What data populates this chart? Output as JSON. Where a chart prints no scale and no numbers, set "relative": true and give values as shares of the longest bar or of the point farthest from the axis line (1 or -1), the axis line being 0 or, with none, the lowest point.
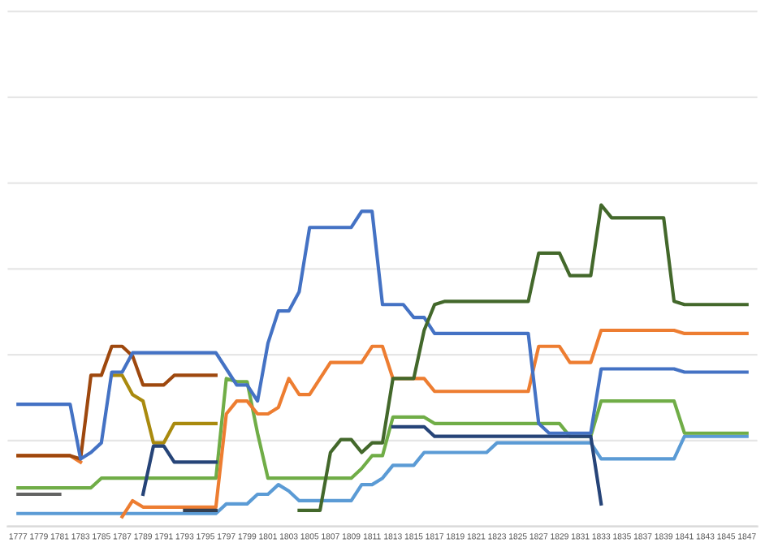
{
  "chart_data": {
    "type": "line",
    "relative": true,
    "grid": "y",
    "tick_labels": "x",
    "legend": false,
    "xlim": [
      1776,
      1848
    ],
    "xticks": [
      1777,
      1779,
      1781,
      1783,
      1785,
      1787,
      1789,
      1791,
      1793,
      1795,
      1797,
      1799,
      1801,
      1803,
      1805,
      1807,
      1809,
      1811,
      1813,
      1815,
      1817,
      1819,
      1821,
      1823,
      1825,
      1827,
      1829,
      1831,
      1833,
      1835,
      1837,
      1839,
      1841,
      1843,
      1845,
      1847
    ],
    "x": [
      1777,
      1778,
      1779,
      1780,
      1781,
      1782,
      1783,
      1784,
      1785,
      1786,
      1787,
      1788,
      1789,
      1790,
      1791,
      1792,
      1793,
      1794,
      1795,
      1796,
      1797,
      1798,
      1799,
      1800,
      1801,
      1802,
      1803,
      1804,
      1805,
      1806,
      1807,
      1808,
      1809,
      1810,
      1811,
      1812,
      1813,
      1814,
      1815,
      1816,
      1817,
      1818,
      1819,
      1820,
      1821,
      1822,
      1823,
      1824,
      1825,
      1826,
      1827,
      1828,
      1829,
      1830,
      1831,
      1832,
      1833,
      1834,
      1835,
      1836,
      1837,
      1838,
      1839,
      1840,
      1841,
      1842,
      1843,
      1844,
      1845,
      1846,
      1847
    ],
    "series": [
      {
        "color": "#5b9bd5",
        "values": [
          0.04,
          0.04,
          0.04,
          0.04,
          0.04,
          0.04,
          0.04,
          0.04,
          0.04,
          0.04,
          0.04,
          0.04,
          0.04,
          0.04,
          0.04,
          0.04,
          0.04,
          0.04,
          0.04,
          0.04,
          0.07,
          0.07,
          0.07,
          0.1,
          0.1,
          0.13,
          0.11,
          0.08,
          0.08,
          0.08,
          0.08,
          0.08,
          0.08,
          0.13,
          0.13,
          0.15,
          0.19,
          0.19,
          0.19,
          0.23,
          0.23,
          0.23,
          0.23,
          0.23,
          0.23,
          0.23,
          0.26,
          0.26,
          0.26,
          0.26,
          0.26,
          0.26,
          0.26,
          0.26,
          0.26,
          0.26,
          0.21,
          0.21,
          0.21,
          0.21,
          0.21,
          0.21,
          0.21,
          0.21,
          0.28,
          0.28,
          0.28,
          0.28,
          0.28,
          0.28,
          0.28
        ]
      },
      {
        "color": "#70ad47",
        "values": [
          0.12,
          0.12,
          0.12,
          0.12,
          0.12,
          0.12,
          0.12,
          0.12,
          0.15,
          0.15,
          0.15,
          0.15,
          0.15,
          0.15,
          0.15,
          0.15,
          0.15,
          0.15,
          0.15,
          0.15,
          0.46,
          0.45,
          0.45,
          0.29,
          0.15,
          0.15,
          0.15,
          0.15,
          0.15,
          0.15,
          0.15,
          0.15,
          0.15,
          0.18,
          0.22,
          0.22,
          0.34,
          0.34,
          0.34,
          0.34,
          0.32,
          0.32,
          0.32,
          0.32,
          0.32,
          0.32,
          0.32,
          0.32,
          0.32,
          0.32,
          0.32,
          0.32,
          0.32,
          0.28,
          0.28,
          0.28,
          0.39,
          0.39,
          0.39,
          0.39,
          0.39,
          0.39,
          0.39,
          0.39,
          0.29,
          0.29,
          0.29,
          0.29,
          0.29,
          0.29,
          0.29
        ]
      },
      {
        "color": "#636363",
        "values": [
          0.1,
          0.1,
          0.1,
          0.1,
          0.1,
          null,
          null,
          null,
          null,
          null,
          null,
          null,
          null,
          null,
          null,
          null,
          null,
          null,
          null,
          null,
          null,
          null,
          null,
          null,
          null,
          null,
          null,
          null,
          null,
          null,
          null,
          null,
          null,
          null,
          null,
          null,
          null,
          null,
          null,
          null,
          null,
          null,
          null,
          null,
          null,
          null,
          null,
          null,
          null,
          null,
          null,
          null,
          null,
          null,
          null,
          null,
          null,
          null,
          null,
          null,
          null,
          null,
          null,
          null,
          null,
          null,
          null,
          null,
          null,
          null,
          null
        ]
      },
      {
        "color": "#ed7d31",
        "values": [
          0.22,
          0.22,
          0.22,
          0.22,
          0.22,
          0.22,
          0.2,
          null,
          null,
          null,
          0.03,
          0.08,
          0.06,
          0.06,
          0.06,
          0.06,
          0.06,
          0.06,
          0.06,
          0.06,
          0.35,
          0.39,
          0.39,
          0.35,
          0.35,
          0.37,
          0.46,
          0.41,
          0.41,
          0.46,
          0.51,
          0.51,
          0.51,
          0.51,
          0.56,
          0.56,
          0.46,
          0.46,
          0.46,
          0.46,
          0.42,
          0.42,
          0.42,
          0.42,
          0.42,
          0.42,
          0.42,
          0.42,
          0.42,
          0.42,
          0.56,
          0.56,
          0.56,
          0.51,
          0.51,
          0.51,
          0.61,
          0.61,
          0.61,
          0.61,
          0.61,
          0.61,
          0.61,
          0.61,
          0.6,
          0.6,
          0.6,
          0.6,
          0.6,
          0.6,
          0.6
        ]
      },
      {
        "color": "#9e480e",
        "values": [
          0.22,
          0.22,
          0.22,
          0.22,
          0.22,
          0.22,
          0.21,
          0.47,
          0.47,
          0.56,
          0.56,
          0.53,
          0.44,
          0.44,
          0.44,
          0.47,
          0.47,
          0.47,
          0.47,
          0.47,
          null,
          null,
          null,
          null,
          null,
          null,
          null,
          null,
          null,
          null,
          null,
          null,
          null,
          null,
          null,
          null,
          null,
          null,
          null,
          null,
          null,
          null,
          null,
          null,
          null,
          null,
          null,
          null,
          null,
          null,
          null,
          null,
          null,
          null,
          null,
          null,
          null,
          null,
          null,
          null,
          null,
          null,
          null,
          null,
          null,
          null,
          null,
          null,
          null,
          null,
          null
        ]
      },
      {
        "color": "#a98a0e",
        "values": [
          null,
          null,
          null,
          null,
          null,
          null,
          null,
          null,
          null,
          0.47,
          0.47,
          0.41,
          0.39,
          0.26,
          0.26,
          0.32,
          0.32,
          0.32,
          0.32,
          0.32,
          null,
          null,
          null,
          null,
          null,
          null,
          null,
          null,
          null,
          null,
          null,
          null,
          null,
          null,
          null,
          null,
          null,
          null,
          null,
          null,
          null,
          null,
          null,
          null,
          null,
          null,
          null,
          null,
          null,
          null,
          null,
          null,
          null,
          null,
          null,
          null,
          null,
          null,
          null,
          null,
          null,
          null,
          null,
          null,
          null,
          null,
          null,
          null,
          null,
          null,
          null
        ]
      },
      {
        "color": "#264478",
        "values": [
          null,
          null,
          null,
          null,
          null,
          null,
          null,
          null,
          null,
          null,
          null,
          null,
          0.1,
          0.25,
          0.25,
          0.2,
          0.2,
          0.2,
          0.2,
          0.2,
          null,
          null,
          null,
          null,
          null,
          null,
          null,
          null,
          null,
          null,
          null,
          null,
          null,
          null,
          null,
          null,
          0.31,
          0.31,
          0.31,
          0.31,
          0.28,
          0.28,
          0.28,
          0.28,
          0.28,
          0.28,
          0.28,
          0.28,
          0.28,
          0.28,
          0.28,
          0.28,
          0.28,
          0.28,
          0.28,
          0.28,
          0.07,
          null,
          null,
          null,
          null,
          null,
          null,
          null,
          null,
          null,
          null,
          null,
          null,
          null,
          null
        ]
      },
      {
        "color": "#4472c4",
        "values": [
          0.38,
          0.38,
          0.38,
          0.38,
          0.38,
          0.38,
          0.21,
          0.23,
          0.26,
          0.48,
          0.48,
          0.54,
          0.54,
          0.54,
          0.54,
          0.54,
          0.54,
          0.54,
          0.54,
          0.54,
          0.49,
          0.44,
          0.44,
          0.39,
          0.57,
          0.67,
          0.67,
          0.73,
          0.93,
          0.93,
          0.93,
          0.93,
          0.93,
          0.98,
          0.98,
          0.69,
          0.69,
          0.69,
          0.65,
          0.65,
          0.6,
          0.6,
          0.6,
          0.6,
          0.6,
          0.6,
          0.6,
          0.6,
          0.6,
          0.6,
          0.32,
          0.29,
          0.29,
          0.29,
          0.29,
          0.29,
          0.49,
          0.49,
          0.49,
          0.49,
          0.49,
          0.49,
          0.49,
          0.49,
          0.48,
          0.48,
          0.48,
          0.48,
          0.48,
          0.48,
          0.48
        ]
      },
      {
        "color": "#43682b",
        "values": [
          null,
          null,
          null,
          null,
          null,
          null,
          null,
          null,
          null,
          null,
          null,
          null,
          null,
          null,
          null,
          null,
          null,
          null,
          null,
          null,
          null,
          null,
          null,
          null,
          null,
          null,
          null,
          0.05,
          0.05,
          0.05,
          0.23,
          0.27,
          0.27,
          0.23,
          0.26,
          0.26,
          0.46,
          0.46,
          0.46,
          0.61,
          0.69,
          0.7,
          0.7,
          0.7,
          0.7,
          0.7,
          0.7,
          0.7,
          0.7,
          0.7,
          0.85,
          0.85,
          0.85,
          0.78,
          0.78,
          0.78,
          1.0,
          0.96,
          0.96,
          0.96,
          0.96,
          0.96,
          0.96,
          0.7,
          0.69,
          0.69,
          0.69,
          0.69,
          0.69,
          0.69,
          0.69
        ]
      },
      {
        "color": "#333f50",
        "values": [
          null,
          null,
          null,
          null,
          null,
          null,
          null,
          null,
          null,
          null,
          null,
          null,
          null,
          null,
          null,
          null,
          0.05,
          0.05,
          0.05,
          0.05,
          null,
          null,
          null,
          null,
          null,
          null,
          null,
          null,
          null,
          null,
          null,
          null,
          null,
          null,
          null,
          null,
          null,
          null,
          null,
          null,
          null,
          null,
          null,
          null,
          null,
          null,
          null,
          null,
          null,
          null,
          null,
          null,
          null,
          null,
          null,
          null,
          null,
          null,
          null,
          null,
          null,
          null,
          null,
          null,
          null,
          null,
          null,
          null,
          null,
          null,
          null
        ]
      }
    ]
  }
}
